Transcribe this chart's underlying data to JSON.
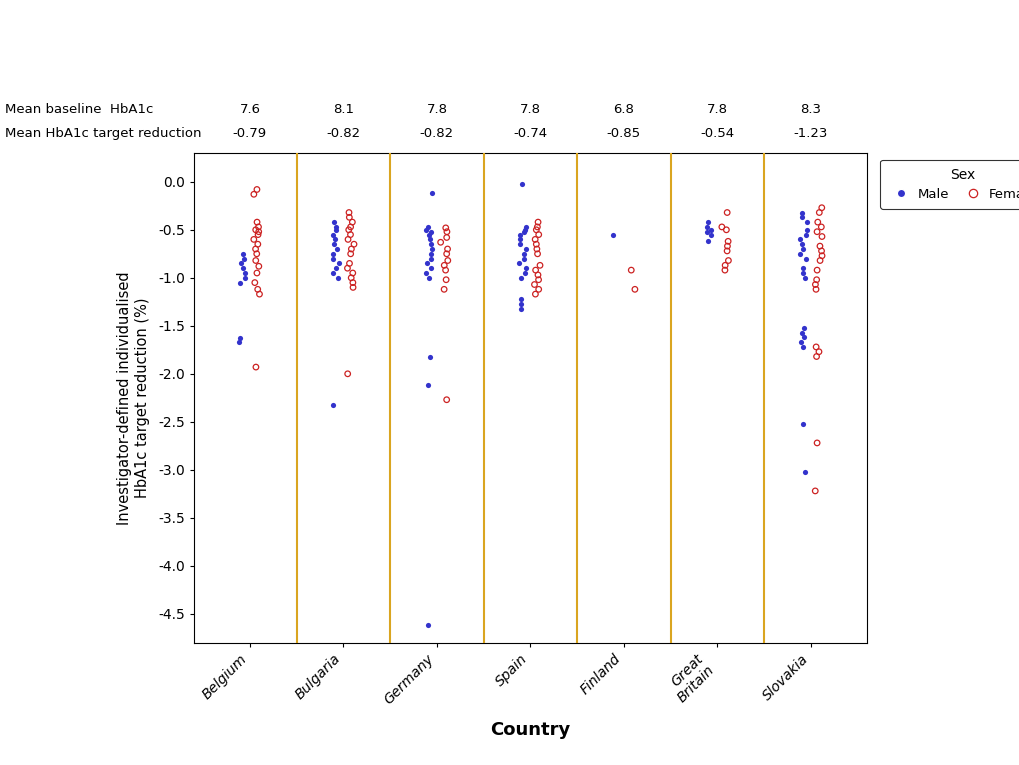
{
  "countries": [
    "Belgium",
    "Bulgaria",
    "Germany",
    "Spain",
    "Finland",
    "Great\nBritain",
    "Slovakia"
  ],
  "xtick_labels": [
    "Belgium",
    "Bulgaria",
    "Germany",
    "Spain",
    "Finland",
    "Great\nBritain",
    "Slovakia"
  ],
  "mean_baseline": [
    "7.6",
    "8.1",
    "7.8",
    "7.8",
    "6.8",
    "7.8",
    "8.3"
  ],
  "mean_reduction": [
    "-0.79",
    "-0.82",
    "-0.82",
    "-0.74",
    "-0.85",
    "-0.54",
    "-1.23"
  ],
  "ylabel": "Investigator-defined individualised\nHbA1c target reduction (%)",
  "xlabel": "Country",
  "ylim": [
    -4.8,
    0.3
  ],
  "yticks": [
    0.0,
    -0.5,
    -1.0,
    -1.5,
    -2.0,
    -2.5,
    -3.0,
    -3.5,
    -4.0,
    -4.5
  ],
  "male_color": "#3333CC",
  "female_color": "#CC2222",
  "separator_color": "#DAA520",
  "background_color": "#FFFFFF",
  "data": {
    "Belgium": {
      "male": [
        -0.75,
        -0.8,
        -0.85,
        -0.9,
        -0.95,
        -1.0,
        -1.05,
        -1.63,
        -1.67
      ],
      "female": [
        -0.08,
        -0.13,
        -0.42,
        -0.47,
        -0.5,
        -0.52,
        -0.55,
        -0.6,
        -0.65,
        -0.7,
        -0.75,
        -0.82,
        -0.88,
        -0.95,
        -1.05,
        -1.12,
        -1.17,
        -1.93
      ]
    },
    "Bulgaria": {
      "male": [
        -0.42,
        -0.47,
        -0.5,
        -0.55,
        -0.6,
        -0.65,
        -0.7,
        -0.75,
        -0.8,
        -0.85,
        -0.9,
        -0.95,
        -1.0,
        -2.32
      ],
      "female": [
        -0.32,
        -0.37,
        -0.42,
        -0.47,
        -0.5,
        -0.55,
        -0.6,
        -0.65,
        -0.7,
        -0.75,
        -0.85,
        -0.9,
        -0.95,
        -1.0,
        -1.05,
        -1.1,
        -2.0
      ]
    },
    "Germany": {
      "male": [
        -0.12,
        -0.47,
        -0.5,
        -0.52,
        -0.55,
        -0.6,
        -0.65,
        -0.7,
        -0.75,
        -0.8,
        -0.85,
        -0.9,
        -0.95,
        -1.0,
        -1.82,
        -2.12,
        -4.62
      ],
      "female": [
        -0.48,
        -0.52,
        -0.58,
        -0.63,
        -0.7,
        -0.75,
        -0.82,
        -0.87,
        -0.92,
        -1.02,
        -1.12,
        -2.27
      ]
    },
    "Spain": {
      "male": [
        -0.02,
        -0.47,
        -0.5,
        -0.52,
        -0.55,
        -0.6,
        -0.65,
        -0.7,
        -0.75,
        -0.8,
        -0.85,
        -0.9,
        -0.95,
        -1.0,
        -1.22,
        -1.27,
        -1.32
      ],
      "female": [
        -0.42,
        -0.47,
        -0.5,
        -0.55,
        -0.6,
        -0.65,
        -0.7,
        -0.75,
        -0.87,
        -0.92,
        -0.97,
        -1.02,
        -1.07,
        -1.12,
        -1.17
      ]
    },
    "Finland": {
      "male": [
        -0.55
      ],
      "female": [
        -1.12,
        -0.92
      ]
    },
    "Great\nBritain": {
      "male": [
        -0.42,
        -0.47,
        -0.5,
        -0.52,
        -0.55,
        -0.62
      ],
      "female": [
        -0.32,
        -0.47,
        -0.5,
        -0.62,
        -0.67,
        -0.72,
        -0.82,
        -0.87,
        -0.92
      ]
    },
    "Slovakia": {
      "male": [
        -0.32,
        -0.37,
        -0.42,
        -0.5,
        -0.55,
        -0.6,
        -0.65,
        -0.7,
        -0.75,
        -0.8,
        -0.9,
        -0.95,
        -1.0,
        -1.52,
        -1.57,
        -1.62,
        -1.67,
        -1.72,
        -2.52,
        -3.02
      ],
      "female": [
        -0.27,
        -0.32,
        -0.42,
        -0.47,
        -0.52,
        -0.57,
        -0.67,
        -0.72,
        -0.77,
        -0.82,
        -0.92,
        -1.02,
        -1.07,
        -1.12,
        -1.72,
        -1.77,
        -1.82,
        -2.72,
        -3.22
      ]
    }
  }
}
